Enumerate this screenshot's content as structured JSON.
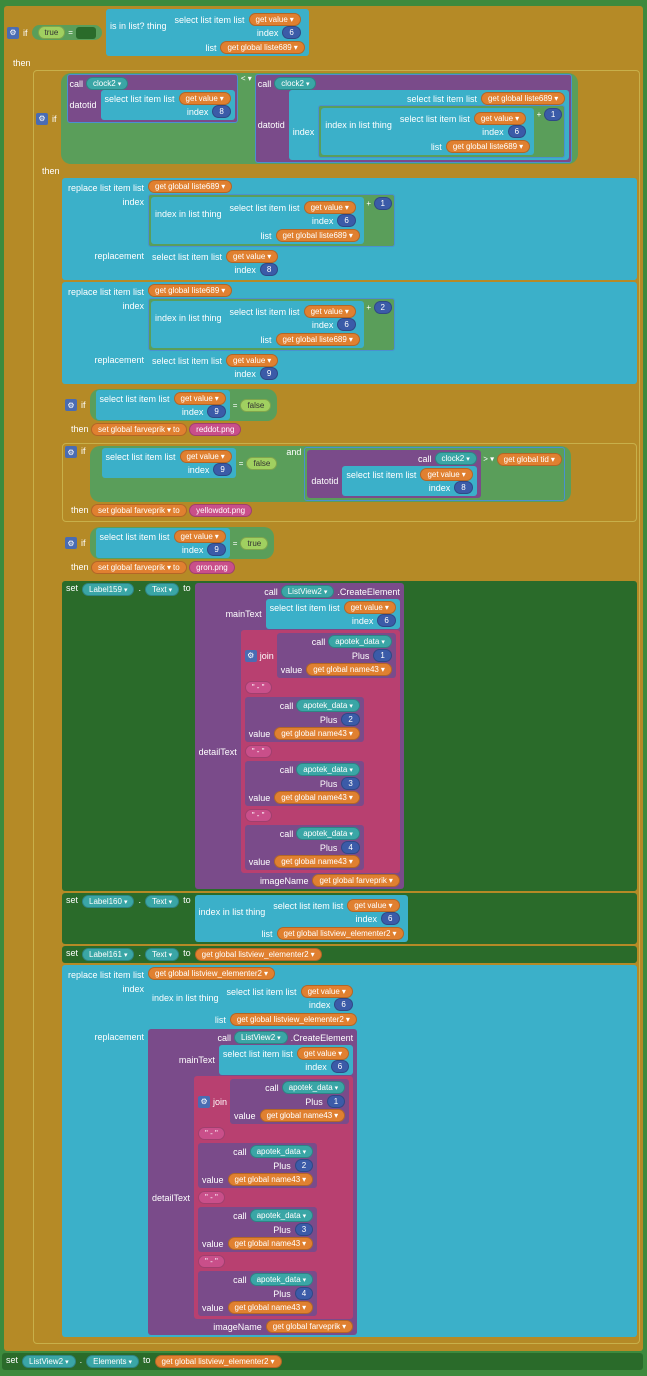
{
  "kw": {
    "if": "if",
    "then": "then",
    "call": "call",
    "set": "set",
    "to": "to",
    "get": "get",
    "and": "and",
    "is_in_list": "is in list? thing",
    "select_list_item": "select list item  list",
    "index": "index",
    "list": "list",
    "index_in_list": "index in list  thing",
    "replace_list_item": "replace list item  list",
    "replacement": "replacement",
    "datotid": "datotid",
    "mainText": "mainText",
    "detailText": "detailText",
    "imageName": "imageName",
    "Plus": "Plus",
    "value": "value",
    "join": "join",
    "CreateElement": ".CreateElement",
    "Elements": "Elements",
    "Text": "Text"
  },
  "vars": {
    "global_liste689": "global liste689",
    "value": "value",
    "global_farveprik": "global farveprik",
    "global_tid": "global tid",
    "global_name43": "global name43",
    "global_listview_elementer2": "global listview_elementer2",
    "Label159": "Label159",
    "Label160": "Label160",
    "Label161": "Label161",
    "ListView2": "ListView2",
    "apotek_data": "apotek_data",
    "clock2": "clock2"
  },
  "nums": {
    "n1": "1",
    "n2": "2",
    "n3": "3",
    "n4": "4",
    "n6": "6",
    "n8": "8",
    "n9": "9"
  },
  "strs": {
    "reddot": "reddot.png",
    "yellowdot": "yellowdot.png",
    "gron": "gron.png",
    "sep": "\" - \""
  },
  "bools": {
    "true": "true",
    "false": "false"
  },
  "ops": {
    "eq": "=",
    "lt": "< ▾",
    "gt": "> ▾",
    "ne": "≠ ▾",
    "plus": "+"
  },
  "colors": {
    "amber": "#b58a26",
    "cyan": "#3bb0c9",
    "blue": "#3b7acc",
    "purple": "#7a4b8a",
    "magenta": "#b84070",
    "green": "#3d8a3d",
    "dkgreen": "#2a6b2a",
    "orange": "#e08030",
    "pill_num": "#3b5ba8",
    "bg": "#3d8a3d"
  }
}
